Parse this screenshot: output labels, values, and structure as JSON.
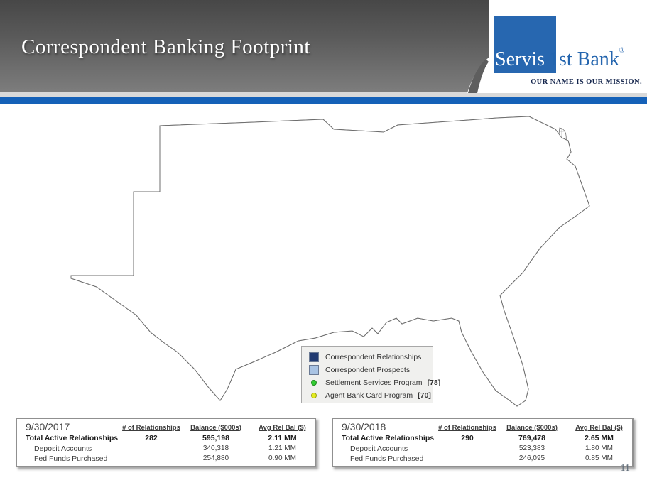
{
  "slide": {
    "title": "Correspondent Banking Footprint",
    "page_number": "11"
  },
  "logo": {
    "word1": "Servis",
    "word2": "1st Bank",
    "registered": "®",
    "tagline": "OUR NAME IS OUR MISSION."
  },
  "map": {
    "description": "County-level map of the south-central and southeastern United States showing correspondent banking footprint",
    "colors": {
      "relationships": "#223b72",
      "prospects": "#a9c3e3",
      "settlement": "#33cc33",
      "agent": "#e3eb1f",
      "county_line": "#9a9a9a",
      "outline": "#6e6e6e"
    },
    "legend": {
      "items": [
        {
          "key": "relationships",
          "label": "Correspondent Relationships",
          "count_label": ""
        },
        {
          "key": "prospects",
          "label": "Correspondent Prospects",
          "count_label": ""
        },
        {
          "key": "settlement",
          "label": "Settlement Services Program",
          "count_label": "[78]",
          "count": 78
        },
        {
          "key": "agent",
          "label": "Agent Bank Card Program",
          "count_label": "[70]",
          "count": 70
        }
      ]
    }
  },
  "tables": [
    {
      "date": "9/30/2017",
      "columns": [
        "# of Relationships",
        "Balance ($000s)",
        "Avg Rel Bal ($)"
      ],
      "rows": [
        {
          "label": "Total Active Relationships",
          "relationships": "282",
          "balance": "595,198",
          "avg": "2.11 MM"
        },
        {
          "label": "Deposit Accounts",
          "relationships": "",
          "balance": "340,318",
          "avg": "1.21 MM"
        },
        {
          "label": "Fed Funds Purchased",
          "relationships": "",
          "balance": "254,880",
          "avg": "0.90 MM"
        }
      ]
    },
    {
      "date": "9/30/2018",
      "columns": [
        "# of Relationships",
        "Balance ($000s)",
        "Avg Rel Bal ($)"
      ],
      "rows": [
        {
          "label": "Total Active Relationships",
          "relationships": "290",
          "balance": "769,478",
          "avg": "2.65 MM"
        },
        {
          "label": "Deposit Accounts",
          "relationships": "",
          "balance": "523,383",
          "avg": "1.80 MM"
        },
        {
          "label": "Fed Funds Purchased",
          "relationships": "",
          "balance": "246,095",
          "avg": "0.85 MM"
        }
      ]
    }
  ]
}
